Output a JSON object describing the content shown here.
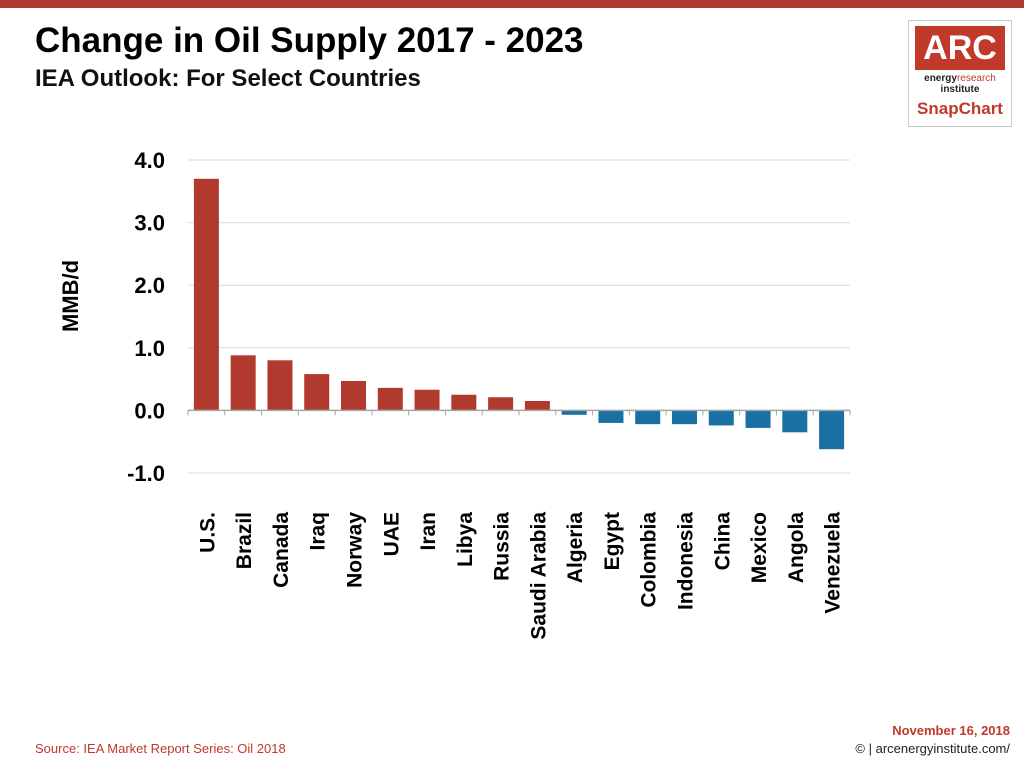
{
  "header": {
    "title": "Change in Oil Supply 2017 - 2023",
    "subtitle": "IEA Outlook: For Select Countries"
  },
  "logo": {
    "mark": "ARC",
    "line1_bold": "energy",
    "line1_accent": "research",
    "line2": "institute",
    "product": "SnapChart"
  },
  "footer": {
    "source": "Source: IEA Market Report Series: Oil 2018",
    "date": "November 16, 2018",
    "copyright": "© | arcenergyinstitute.com/"
  },
  "colors": {
    "positive": "#b03a2e",
    "negative": "#1a6fa3",
    "grid": "#d9d9d9",
    "accent": "#c0392b"
  },
  "chart_data": {
    "type": "bar",
    "title": "Change in Oil Supply 2017 - 2023",
    "subtitle": "IEA Outlook: For Select Countries",
    "xlabel": "",
    "ylabel": "MMB/d",
    "ylim": [
      -1.0,
      4.0
    ],
    "yticks": [
      "-1.0",
      "0.0",
      "1.0",
      "2.0",
      "3.0",
      "4.0"
    ],
    "grid": true,
    "categories": [
      "U.S.",
      "Brazil",
      "Canada",
      "Iraq",
      "Norway",
      "UAE",
      "Iran",
      "Libya",
      "Russia",
      "Saudi Arabia",
      "Algeria",
      "Egypt",
      "Colombia",
      "Indonesia",
      "China",
      "Mexico",
      "Angola",
      "Venezuela"
    ],
    "values": [
      3.7,
      0.88,
      0.8,
      0.58,
      0.47,
      0.36,
      0.33,
      0.25,
      0.21,
      0.15,
      -0.07,
      -0.2,
      -0.22,
      -0.22,
      -0.24,
      -0.28,
      -0.35,
      -0.62
    ]
  }
}
